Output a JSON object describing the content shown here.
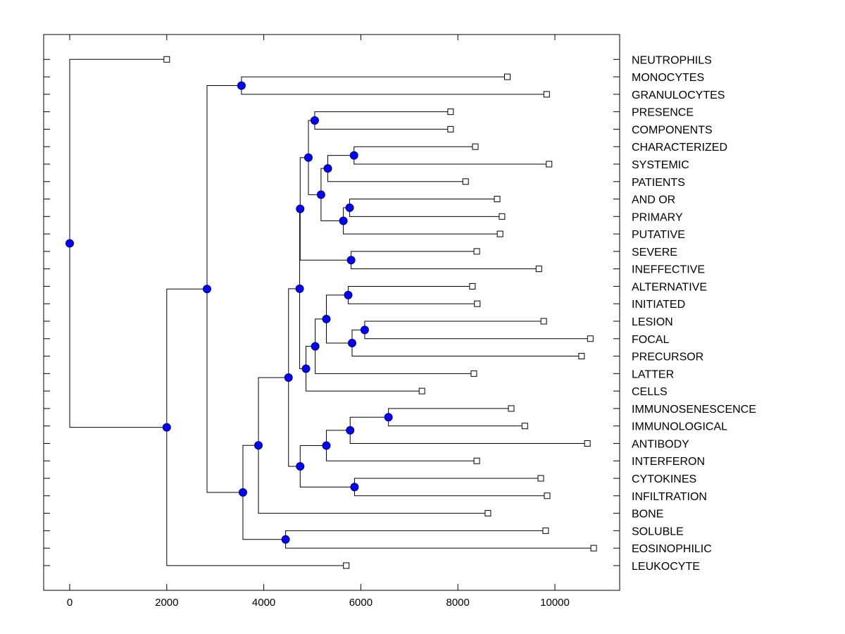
{
  "chart_data": {
    "type": "dendrogram",
    "title": "",
    "xlabel": "",
    "ylabel": "",
    "xlim": [
      -550,
      11400
    ],
    "x_ticks": [
      0,
      2000,
      4000,
      6000,
      8000,
      10000
    ],
    "x_tick_labels": [
      "0",
      "2000",
      "4000",
      "6000",
      "8000",
      "10000"
    ],
    "grid": false,
    "legend": "none",
    "colors": {
      "node_fill": "#0000ff",
      "node_stroke": "#000080",
      "line": "#000000",
      "leaf_fill": "#ffffff"
    },
    "leaves": [
      {
        "id": "NEUTROPHILS",
        "label": "NEUTROPHILS",
        "x": 2000
      },
      {
        "id": "MONOCYTES",
        "label": "MONOCYTES",
        "x": 9020
      },
      {
        "id": "GRANULOCYTES",
        "label": "GRANULOCYTES",
        "x": 9830
      },
      {
        "id": "PRESENCE",
        "label": "PRESENCE",
        "x": 7850
      },
      {
        "id": "COMPONENTS",
        "label": "COMPONENTS",
        "x": 7850
      },
      {
        "id": "CHARACTERIZED",
        "label": "CHARACTERIZED",
        "x": 8360
      },
      {
        "id": "SYSTEMIC",
        "label": "SYSTEMIC",
        "x": 9880
      },
      {
        "id": "PATIENTS",
        "label": "PATIENTS",
        "x": 8160
      },
      {
        "id": "AND_OR",
        "label": "AND OR",
        "x": 8810
      },
      {
        "id": "PRIMARY",
        "label": "PRIMARY",
        "x": 8910
      },
      {
        "id": "PUTATIVE",
        "label": "PUTATIVE",
        "x": 8870
      },
      {
        "id": "SEVERE",
        "label": "SEVERE",
        "x": 8390
      },
      {
        "id": "INEFFECTIVE",
        "label": "INEFFECTIVE",
        "x": 9670
      },
      {
        "id": "ALTERNATIVE",
        "label": "ALTERNATIVE",
        "x": 8300
      },
      {
        "id": "INITIATED",
        "label": "INITIATED",
        "x": 8400
      },
      {
        "id": "LESION",
        "label": "LESION",
        "x": 9770
      },
      {
        "id": "FOCAL",
        "label": "FOCAL",
        "x": 10730
      },
      {
        "id": "PRECURSOR",
        "label": "PRECURSOR",
        "x": 10550
      },
      {
        "id": "LATTER",
        "label": "LATTER",
        "x": 8330
      },
      {
        "id": "CELLS",
        "label": "CELLS",
        "x": 7260
      },
      {
        "id": "IMMUNOSENESCENCE",
        "label": "IMMUNOSENESCENCE",
        "x": 9100
      },
      {
        "id": "IMMUNOLOGICAL",
        "label": "IMMUNOLOGICAL",
        "x": 9380
      },
      {
        "id": "ANTIBODY",
        "label": "ANTIBODY",
        "x": 10670
      },
      {
        "id": "INTERFERON",
        "label": "INTERFERON",
        "x": 8390
      },
      {
        "id": "CYTOKINES",
        "label": "CYTOKINES",
        "x": 9710
      },
      {
        "id": "INFILTRATION",
        "label": "INFILTRATION",
        "x": 9840
      },
      {
        "id": "BONE",
        "label": "BONE",
        "x": 8620
      },
      {
        "id": "SOLUBLE",
        "label": "SOLUBLE",
        "x": 9810
      },
      {
        "id": "EOSINOPHILIC",
        "label": "EOSINOPHILIC",
        "x": 10800
      },
      {
        "id": "LEUKOCYTE",
        "label": "LEUKOCYTE",
        "x": 5700
      }
    ],
    "nodes": [
      {
        "id": "root",
        "x": 0,
        "children": [
          "NEUTROPHILS",
          "nA"
        ]
      },
      {
        "id": "nA",
        "x": 2000,
        "children": [
          "nB",
          "LEUKOCYTE"
        ]
      },
      {
        "id": "nB",
        "x": 2830,
        "children": [
          "nC",
          "nD"
        ]
      },
      {
        "id": "nC",
        "x": 3540,
        "children": [
          "MONOCYTES",
          "GRANULOCYTES"
        ]
      },
      {
        "id": "nD",
        "x": 3570,
        "children": [
          "nE",
          "nF"
        ]
      },
      {
        "id": "nE",
        "x": 3890,
        "children": [
          "nG",
          "BONE"
        ]
      },
      {
        "id": "nF",
        "x": 4450,
        "children": [
          "SOLUBLE",
          "EOSINOPHILIC"
        ]
      },
      {
        "id": "nG",
        "x": 4510,
        "children": [
          "nH",
          "nI"
        ]
      },
      {
        "id": "nH",
        "x": 4740,
        "children": [
          "nJ",
          "nK"
        ]
      },
      {
        "id": "nJ",
        "x": 4750,
        "children": [
          "nL",
          "nM"
        ]
      },
      {
        "id": "nL",
        "x": 4920,
        "children": [
          "nN",
          "nO"
        ]
      },
      {
        "id": "nN",
        "x": 5050,
        "children": [
          "PRESENCE",
          "COMPONENTS"
        ]
      },
      {
        "id": "nO",
        "x": 5180,
        "children": [
          "nP",
          "nQ"
        ]
      },
      {
        "id": "nP",
        "x": 5320,
        "children": [
          "nR",
          "PATIENTS"
        ]
      },
      {
        "id": "nR",
        "x": 5860,
        "children": [
          "CHARACTERIZED",
          "SYSTEMIC"
        ]
      },
      {
        "id": "nQ",
        "x": 5640,
        "children": [
          "nS",
          "PUTATIVE"
        ]
      },
      {
        "id": "nS",
        "x": 5770,
        "children": [
          "AND_OR",
          "PRIMARY"
        ]
      },
      {
        "id": "nM",
        "x": 5800,
        "children": [
          "SEVERE",
          "INEFFECTIVE"
        ]
      },
      {
        "id": "nK",
        "x": 4870,
        "children": [
          "nT",
          "CELLS"
        ]
      },
      {
        "id": "nT",
        "x": 5060,
        "children": [
          "nU",
          "LATTER"
        ]
      },
      {
        "id": "nU",
        "x": 5290,
        "children": [
          "nV",
          "nW"
        ]
      },
      {
        "id": "nV",
        "x": 5740,
        "children": [
          "ALTERNATIVE",
          "INITIATED"
        ]
      },
      {
        "id": "nW",
        "x": 5820,
        "children": [
          "nX",
          "PRECURSOR"
        ]
      },
      {
        "id": "nX",
        "x": 6080,
        "children": [
          "LESION",
          "FOCAL"
        ]
      },
      {
        "id": "nI",
        "x": 4750,
        "children": [
          "nY",
          "nZ"
        ]
      },
      {
        "id": "nY",
        "x": 5290,
        "children": [
          "nAA",
          "INTERFERON"
        ]
      },
      {
        "id": "nAA",
        "x": 5780,
        "children": [
          "nAB",
          "ANTIBODY"
        ]
      },
      {
        "id": "nAB",
        "x": 6570,
        "children": [
          "IMMUNOSENESCENCE",
          "IMMUNOLOGICAL"
        ]
      },
      {
        "id": "nZ",
        "x": 5870,
        "children": [
          "CYTOKINES",
          "INFILTRATION"
        ]
      }
    ]
  }
}
